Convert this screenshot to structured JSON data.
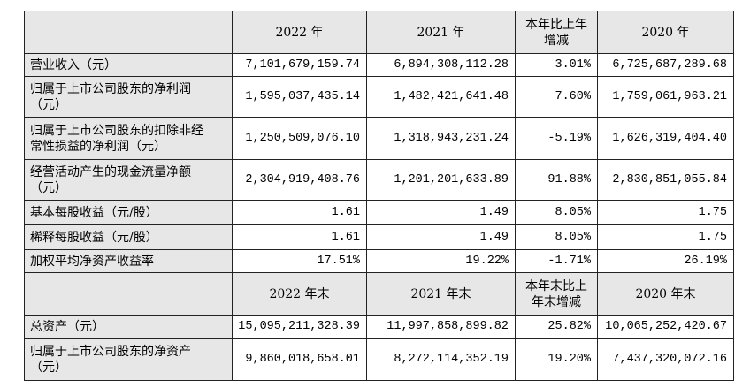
{
  "colors": {
    "shade": "#e7e7e7",
    "rule": "#222222"
  },
  "table": {
    "header_1": {
      "year_2022": "2022 年",
      "year_2021": "2021 年",
      "change": "本年比上年\n增减",
      "year_2020": "2020 年"
    },
    "rows_1": [
      {
        "label": "营业收入（元）",
        "v2022": "7,101,679,159.74",
        "v2021": "6,894,308,112.28",
        "change": "3.01%",
        "v2020": "6,725,687,289.68"
      },
      {
        "label": "归属于上市公司股东的净利润\n（元）",
        "v2022": "1,595,037,435.14",
        "v2021": "1,482,421,641.48",
        "change": "7.60%",
        "v2020": "1,759,061,963.21"
      },
      {
        "label": "归属于上市公司股东的扣除非经\n常性损益的净利润（元）",
        "v2022": "1,250,509,076.10",
        "v2021": "1,318,943,231.24",
        "change": "-5.19%",
        "v2020": "1,626,319,404.40"
      },
      {
        "label": "经营活动产生的现金流量净额\n（元）",
        "v2022": "2,304,919,408.76",
        "v2021": "1,201,201,633.89",
        "change": "91.88%",
        "v2020": "2,830,851,055.84"
      },
      {
        "label": "基本每股收益（元/股）",
        "v2022": "1.61",
        "v2021": "1.49",
        "change": "8.05%",
        "v2020": "1.75"
      },
      {
        "label": "稀释每股收益（元/股）",
        "v2022": "1.61",
        "v2021": "1.49",
        "change": "8.05%",
        "v2020": "1.75"
      },
      {
        "label": "加权平均净资产收益率",
        "v2022": "17.51%",
        "v2021": "19.22%",
        "change": "-1.71%",
        "v2020": "26.19%"
      }
    ],
    "header_2": {
      "year_2022": "2022 年末",
      "year_2021": "2021 年末",
      "change": "本年末比上\n年末增减",
      "year_2020": "2020 年末"
    },
    "rows_2": [
      {
        "label": "总资产（元）",
        "v2022": "15,095,211,328.39",
        "v2021": "11,997,858,899.82",
        "change": "25.82%",
        "v2020": "10,065,252,420.67"
      },
      {
        "label": "归属于上市公司股东的净资产\n（元）",
        "v2022": "9,860,018,658.01",
        "v2021": "8,272,114,352.19",
        "change": "19.20%",
        "v2020": "7,437,320,072.16"
      }
    ]
  }
}
